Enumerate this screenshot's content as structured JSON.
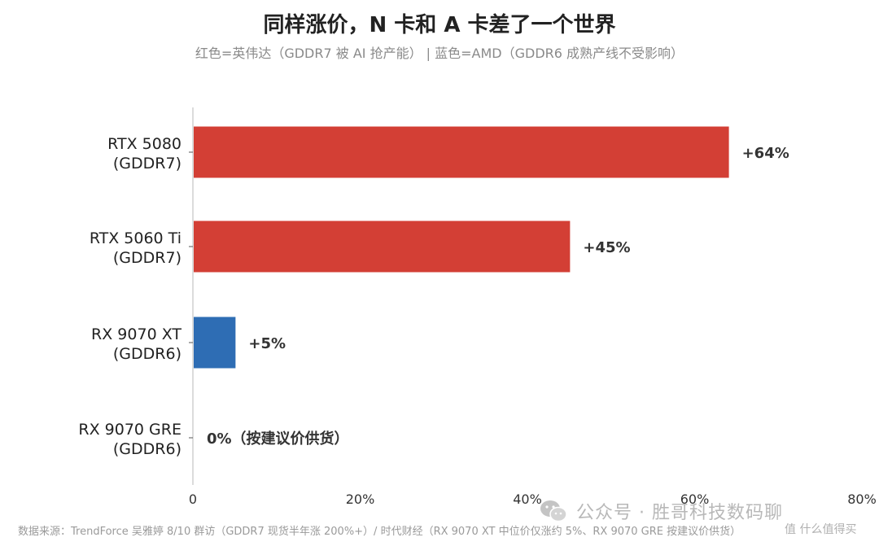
{
  "chart_data": {
    "type": "bar",
    "orientation": "horizontal",
    "title": "同样涨价，N 卡和 A 卡差了一个世界",
    "subtitle": "红色=英伟达（GDDR7 被 AI 抢产能） | 蓝色=AMD（GDDR6 成熟产线不受影响）",
    "categories": [
      {
        "line1": "RTX 5080",
        "line2": "(GDDR7)"
      },
      {
        "line1": "RTX 5060 Ti",
        "line2": "(GDDR7)"
      },
      {
        "line1": "RX 9070 XT",
        "line2": "(GDDR6)"
      },
      {
        "line1": "RX 9070 GRE",
        "line2": "(GDDR6)"
      }
    ],
    "values": [
      64,
      45,
      5,
      0
    ],
    "data_labels": [
      "+64%",
      "+45%",
      "+5%",
      "0%（按建议价供货）"
    ],
    "bar_colors": [
      "#d33f35",
      "#d33f35",
      "#2e6db4",
      "#2e6db4"
    ],
    "xlim": [
      0,
      80
    ],
    "xticks": [
      0,
      20,
      40,
      60,
      80
    ],
    "xtick_labels": [
      "0",
      "20%",
      "40%",
      "60%",
      "80%"
    ],
    "grid": false
  },
  "footer": {
    "source": "数据来源：TrendForce 吴雅婷 8/10 群访（GDDR7 现货半年涨 200%+）/ 时代财经（RX 9070 XT 中位价仅涨约 5%、RX 9070 GRE 按建议价供货）"
  },
  "watermark": {
    "text": "公众号 · 胜哥科技数码聊",
    "badge": "值 什么值得买",
    "icon": "wechat-icon"
  },
  "colors": {
    "nvidia_red": "#d33f35",
    "amd_blue": "#2e6db4",
    "axis": "#d0d0d0",
    "label_text": "#222222",
    "value_text": "#333333"
  }
}
